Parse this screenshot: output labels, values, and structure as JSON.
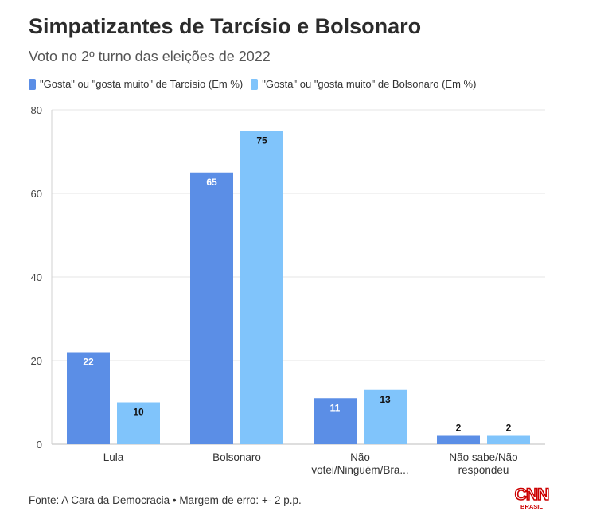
{
  "title": "Simpatizantes de Tarcísio e Bolsonaro",
  "subtitle": "Voto no 2º turno das eleições de 2022",
  "footer": "Fonte: A Cara da Democracia • Margem de erro: +- 2 p.p.",
  "logo": {
    "name": "CNN",
    "sub": "BRASIL",
    "color": "#cc0000"
  },
  "chart_data": {
    "type": "bar",
    "categories": [
      "Lula",
      "Bolsonaro",
      "Não votei/Ninguém/Bra...",
      "Não sabe/Não respondeu"
    ],
    "category_lines": [
      [
        "Lula"
      ],
      [
        "Bolsonaro"
      ],
      [
        "Não",
        "votei/Ninguém/Bra..."
      ],
      [
        "Não sabe/Não",
        "respondeu"
      ]
    ],
    "series": [
      {
        "name": "\"Gosta\" ou \"gosta muito\" de Tarcísio (Em %)",
        "values": [
          22,
          65,
          11,
          2
        ],
        "color": "#5b8ee6"
      },
      {
        "name": "\"Gosta\" ou \"gosta muito\" de Bolsonaro (Em %)",
        "values": [
          10,
          75,
          13,
          2
        ],
        "color": "#80c4fb"
      }
    ],
    "yticks": [
      0,
      20,
      40,
      60,
      80
    ],
    "ylim": [
      0,
      80
    ],
    "grid": true,
    "legend_position": "top-left"
  }
}
